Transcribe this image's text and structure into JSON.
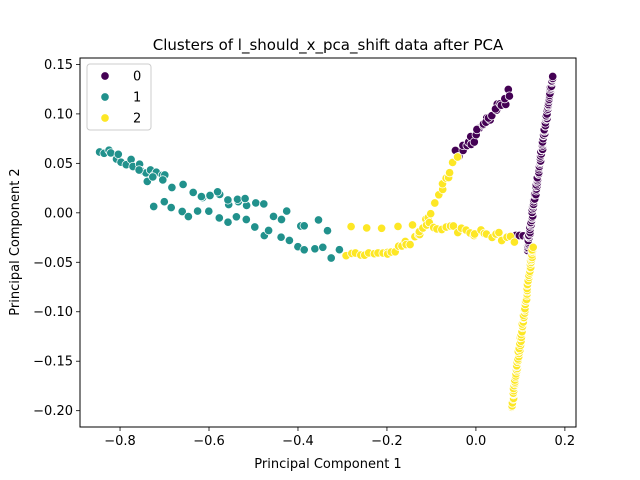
{
  "chart_data": {
    "type": "scatter",
    "title": "Clusters of l_should_x_pca_shift data after PCA",
    "xlabel": "Principal Component 1",
    "ylabel": "Principal Component 2",
    "xlim": [
      -0.89,
      0.225
    ],
    "ylim": [
      -0.2165,
      0.1565
    ],
    "xticks": [
      -0.8,
      -0.6,
      -0.4,
      -0.2,
      0.0,
      0.2
    ],
    "yticks": [
      -0.2,
      -0.15,
      -0.1,
      -0.05,
      0.0,
      0.05,
      0.1,
      0.15
    ],
    "xtick_labels": [
      "−0.8",
      "−0.6",
      "−0.4",
      "−0.2",
      "0.0",
      "0.2"
    ],
    "ytick_labels": [
      "−0.20",
      "−0.15",
      "−0.10",
      "−0.05",
      "0.00",
      "0.05",
      "0.10",
      "0.15"
    ],
    "grid": false,
    "legend": {
      "placement": "top-left"
    },
    "series": [
      {
        "name": "0",
        "color": "#440154",
        "segments": [
          {
            "from": [
              -0.04,
              0.058
            ],
            "to": [
              0.075,
              0.122
            ],
            "n": 28,
            "jitter": 0.006
          },
          {
            "from": [
              0.09,
              -0.022
            ],
            "to": [
              0.115,
              -0.024
            ],
            "n": 4,
            "jitter": 0.002
          },
          {
            "from": [
              0.115,
              -0.038
            ],
            "to": [
              0.172,
              0.138
            ],
            "n": 120,
            "jitter": 0.0015
          }
        ]
      },
      {
        "name": "1",
        "color": "#21918c",
        "segments": [
          {
            "from": [
              -0.845,
              0.064
            ],
            "to": [
              -0.7,
              0.036
            ],
            "n": 18,
            "jitter": 0.004
          },
          {
            "from": [
              -0.76,
              0.04
            ],
            "to": [
              -0.34,
              -0.015
            ],
            "n": 22,
            "jitter": 0.007
          },
          {
            "from": [
              -0.72,
              0.013
            ],
            "to": [
              -0.3,
              -0.042
            ],
            "n": 22,
            "jitter": 0.007
          },
          {
            "from": [
              -0.62,
              0.02
            ],
            "to": [
              -0.52,
              0.015
            ],
            "n": 6,
            "jitter": 0.004
          }
        ]
      },
      {
        "name": "2",
        "color": "#fde725",
        "segments": [
          {
            "from": [
              -0.29,
              -0.042
            ],
            "to": [
              -0.2,
              -0.042
            ],
            "n": 10,
            "jitter": 0.002
          },
          {
            "from": [
              -0.2,
              -0.04
            ],
            "to": [
              -0.13,
              -0.025
            ],
            "n": 10,
            "jitter": 0.004
          },
          {
            "from": [
              -0.13,
              -0.025
            ],
            "to": [
              -0.045,
              0.055
            ],
            "n": 16,
            "jitter": 0.005
          },
          {
            "from": [
              -0.28,
              -0.013
            ],
            "to": [
              -0.14,
              -0.013
            ],
            "n": 5,
            "jitter": 0.003
          },
          {
            "from": [
              -0.11,
              -0.012
            ],
            "to": [
              0.085,
              -0.026
            ],
            "n": 24,
            "jitter": 0.004
          },
          {
            "from": [
              0.08,
              -0.198
            ],
            "to": [
              0.128,
              -0.035
            ],
            "n": 90,
            "jitter": 0.0015
          }
        ]
      }
    ]
  }
}
